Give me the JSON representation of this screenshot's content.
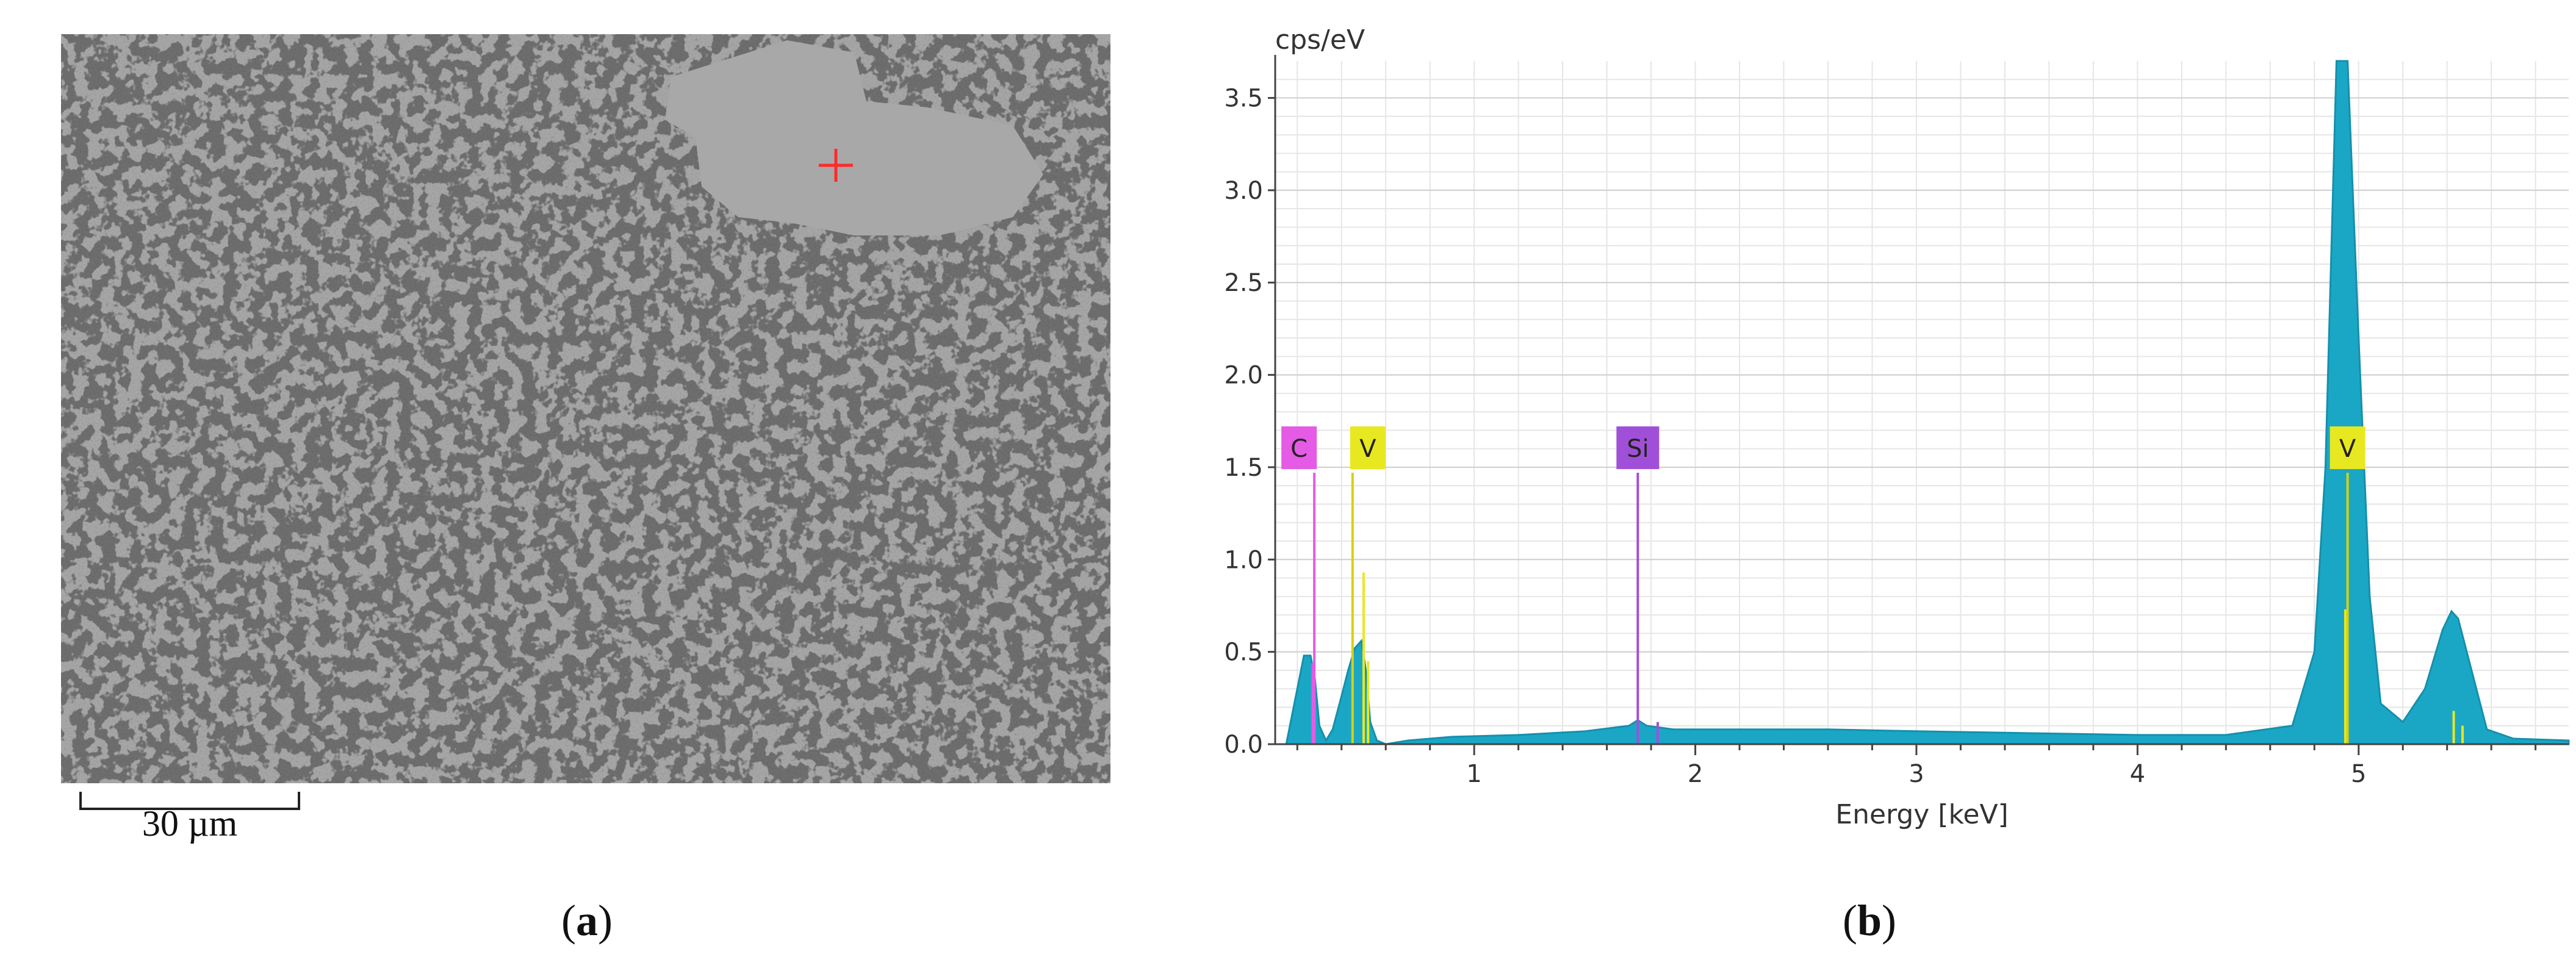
{
  "panel_a": {
    "scale_bar_label": "30 µm",
    "caption": {
      "open": "(",
      "letter": "a",
      "close": ")"
    },
    "marker_color": "#ff2a2a"
  },
  "panel_b": {
    "caption": {
      "open": "(",
      "letter": "b",
      "close": ")"
    }
  },
  "chart_data": {
    "type": "area",
    "title": "",
    "ylabel": "cps/eV",
    "xlabel": "Energy [keV]",
    "xlim": [
      0.1,
      5.95
    ],
    "ylim": [
      0,
      3.7
    ],
    "x_ticks": [
      1,
      2,
      3,
      4,
      5
    ],
    "y_ticks": [
      0.0,
      0.5,
      1.0,
      1.5,
      2.0,
      2.5,
      3.0,
      3.5
    ],
    "y_tick_labels": [
      "0.0",
      "0.5",
      "1.0",
      "1.5",
      "2.0",
      "2.5",
      "3.0",
      "3.5"
    ],
    "grid": true,
    "fill_color": "#1aa7c6",
    "spectrum": {
      "x": [
        0.15,
        0.2,
        0.23,
        0.26,
        0.28,
        0.3,
        0.33,
        0.36,
        0.4,
        0.43,
        0.46,
        0.49,
        0.51,
        0.53,
        0.56,
        0.6,
        0.7,
        0.9,
        1.2,
        1.5,
        1.7,
        1.74,
        1.78,
        1.9,
        2.2,
        2.6,
        3.0,
        3.5,
        4.0,
        4.4,
        4.7,
        4.8,
        4.85,
        4.9,
        4.95,
        5.0,
        5.05,
        5.1,
        5.2,
        5.3,
        5.38,
        5.42,
        5.45,
        5.5,
        5.58,
        5.7,
        5.95
      ],
      "y": [
        0.0,
        0.3,
        0.48,
        0.48,
        0.35,
        0.1,
        0.02,
        0.08,
        0.26,
        0.4,
        0.52,
        0.56,
        0.4,
        0.12,
        0.02,
        0.0,
        0.02,
        0.04,
        0.05,
        0.07,
        0.1,
        0.13,
        0.1,
        0.08,
        0.08,
        0.08,
        0.07,
        0.06,
        0.05,
        0.05,
        0.1,
        0.5,
        1.5,
        3.7,
        3.7,
        2.2,
        0.8,
        0.22,
        0.12,
        0.3,
        0.62,
        0.72,
        0.68,
        0.45,
        0.08,
        0.03,
        0.02
      ]
    },
    "element_markers": [
      {
        "label": "C",
        "x": 0.277,
        "color": "#e55be5",
        "line_top": 1.47
      },
      {
        "label": "V",
        "x": 0.45,
        "color": "#e8e820",
        "line_top": 1.47
      },
      {
        "label": "Si",
        "x": 1.74,
        "color": "#a050d8",
        "line_top": 1.47
      },
      {
        "label": "V",
        "x": 4.95,
        "color": "#e8e820",
        "line_top": 1.47
      }
    ],
    "minor_lines": [
      {
        "x": 0.5,
        "top": 0.93,
        "color": "#e8e820"
      },
      {
        "x": 0.52,
        "top": 0.45,
        "color": "#e8e820"
      },
      {
        "x": 0.27,
        "top": 0.44,
        "color": "#e55be5"
      },
      {
        "x": 4.94,
        "top": 0.73,
        "color": "#e8e820"
      },
      {
        "x": 5.43,
        "top": 0.18,
        "color": "#e8e820"
      },
      {
        "x": 5.47,
        "top": 0.1,
        "color": "#e8e820"
      },
      {
        "x": 1.83,
        "top": 0.12,
        "color": "#a050d8"
      }
    ]
  }
}
